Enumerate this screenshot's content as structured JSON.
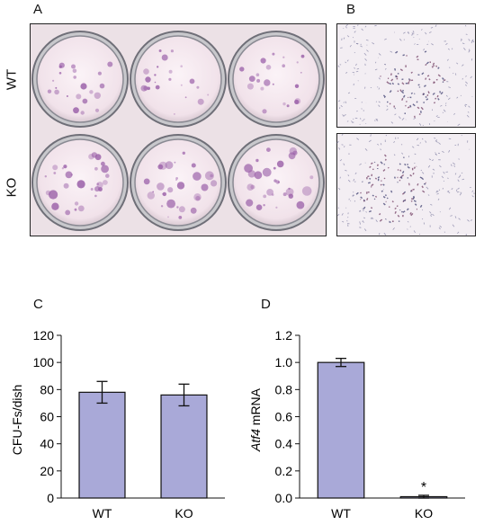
{
  "panels": {
    "a": {
      "letter": "A",
      "rows": [
        "WT",
        "KO"
      ]
    },
    "b": {
      "letter": "B"
    },
    "c": {
      "letter": "C"
    },
    "d": {
      "letter": "D"
    }
  },
  "colors": {
    "bar_fill": "#a9a9d8",
    "bar_stroke": "#111111",
    "dish_bg": "#f6ecf2",
    "plate_bg": "#e9dde3",
    "colony": "#9a5fa8"
  },
  "chart_data": [
    {
      "type": "bar",
      "panel": "C",
      "categories": [
        "WT",
        "KO"
      ],
      "values": [
        78,
        76
      ],
      "errors": [
        8,
        8
      ],
      "ylabel": "CFU-Fs/dish",
      "xlabel": "",
      "ylim": [
        0,
        120
      ],
      "yticks": [
        "0",
        "20",
        "40",
        "60",
        "80",
        "100",
        "120"
      ],
      "grid": false
    },
    {
      "type": "bar",
      "panel": "D",
      "categories": [
        "WT",
        "KO"
      ],
      "values": [
        1.0,
        0.01
      ],
      "errors": [
        0.03,
        0.01
      ],
      "ylabel_italic": "Atf4",
      "ylabel_rest": " mRNA",
      "xlabel": "",
      "ylim": [
        0,
        1.2
      ],
      "yticks": [
        "0.0",
        "0.2",
        "0.4",
        "0.6",
        "0.8",
        "1.0",
        "1.2"
      ],
      "annotations": [
        {
          "category": "KO",
          "text": "*"
        }
      ],
      "grid": false
    }
  ]
}
